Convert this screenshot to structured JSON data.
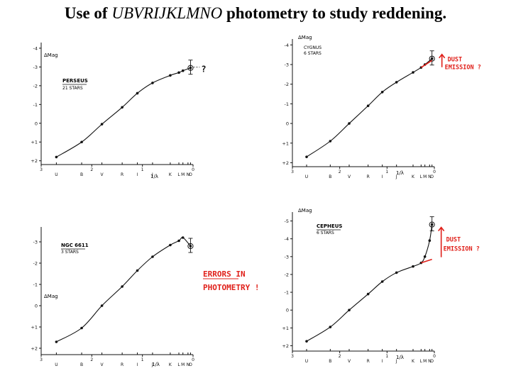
{
  "title": {
    "prefix": "Use of ",
    "emphasis": "UBVRIJKLMNO",
    "suffix": " photometry to study reddening."
  },
  "colors": {
    "curve": "#111111",
    "annotation": "#e0201a",
    "paper": "#ffffff"
  },
  "chart_data": [
    {
      "type": "line",
      "title": "PERSEUS",
      "subtitle": "21 STARS",
      "ylabel": "ΔMag",
      "xlabel": "1/λ",
      "bands": [
        "U",
        "B",
        "V",
        "R",
        "I",
        "J",
        "K",
        "L",
        "M",
        "N",
        "O"
      ],
      "band_x": [
        2.7,
        2.2,
        1.8,
        1.4,
        1.1,
        0.8,
        0.45,
        0.28,
        0.2,
        0.1,
        0.05
      ],
      "x_ticks": [
        "3",
        "2",
        "1",
        "0"
      ],
      "xlim": [
        3,
        0
      ],
      "y_ticks": [
        "-4",
        "-3",
        "-2",
        "-1",
        "0",
        "+1",
        "+2"
      ],
      "ylim": [
        2.2,
        -4.3
      ],
      "points": [
        [
          2.7,
          1.8
        ],
        [
          2.2,
          1.0
        ],
        [
          1.8,
          0.05
        ],
        [
          1.4,
          -0.85
        ],
        [
          1.1,
          -1.6
        ],
        [
          0.8,
          -2.15
        ],
        [
          0.45,
          -2.55
        ],
        [
          0.28,
          -2.7
        ],
        [
          0.2,
          -2.8
        ],
        [
          0.05,
          -2.95
        ]
      ],
      "annotation": "?"
    },
    {
      "type": "line",
      "title": "CYGNUS",
      "subtitle": "6 STARS",
      "ylabel": "ΔMag",
      "xlabel": "1/λ",
      "bands": [
        "U",
        "B",
        "V",
        "R",
        "I",
        "J",
        "K",
        "L",
        "M",
        "N",
        "O"
      ],
      "band_x": [
        2.7,
        2.2,
        1.8,
        1.4,
        1.1,
        0.8,
        0.45,
        0.28,
        0.2,
        0.1,
        0.05
      ],
      "x_ticks": [
        "3",
        "2",
        "1",
        "0"
      ],
      "xlim": [
        3,
        0
      ],
      "y_ticks": [
        "-4",
        "-3",
        "-2",
        "-1",
        "0",
        "+1",
        "+2"
      ],
      "ylim": [
        2.2,
        -4.3
      ],
      "points": [
        [
          2.7,
          1.7
        ],
        [
          2.2,
          0.9
        ],
        [
          1.8,
          0.0
        ],
        [
          1.4,
          -0.9
        ],
        [
          1.1,
          -1.6
        ],
        [
          0.8,
          -2.1
        ],
        [
          0.45,
          -2.6
        ],
        [
          0.28,
          -2.85
        ],
        [
          0.2,
          -3.0
        ],
        [
          0.05,
          -3.3
        ]
      ],
      "annotation": "DUST EMISSION ?"
    },
    {
      "type": "line",
      "title": "NGC 6611",
      "subtitle": "3 STARS",
      "ylabel": "ΔMag",
      "xlabel": "1/λ",
      "bands": [
        "U",
        "B",
        "V",
        "R",
        "I",
        "J",
        "K",
        "L",
        "M",
        "N",
        "O"
      ],
      "band_x": [
        2.7,
        2.2,
        1.8,
        1.4,
        1.1,
        0.8,
        0.45,
        0.28,
        0.2,
        0.1,
        0.05
      ],
      "x_ticks": [
        "3",
        "2",
        "1",
        "0"
      ],
      "xlim": [
        3,
        0
      ],
      "y_ticks": [
        "-3",
        "-2",
        "-1",
        "0",
        "+1",
        "+2"
      ],
      "ylim": [
        2.3,
        -3.7
      ],
      "points": [
        [
          2.7,
          1.7
        ],
        [
          2.2,
          1.05
        ],
        [
          1.8,
          0.0
        ],
        [
          1.4,
          -0.9
        ],
        [
          1.1,
          -1.65
        ],
        [
          0.8,
          -2.3
        ],
        [
          0.45,
          -2.85
        ],
        [
          0.28,
          -3.05
        ],
        [
          0.2,
          -3.2
        ],
        [
          0.05,
          -2.8
        ]
      ],
      "annotation": "ERRORS IN PHOTOMETRY !"
    },
    {
      "type": "line",
      "title": "CEPHEUS",
      "subtitle": "6 STARS",
      "ylabel": "ΔMag",
      "xlabel": "1/λ",
      "bands": [
        "U",
        "B",
        "V",
        "R",
        "I",
        "J",
        "K",
        "L",
        "M",
        "N",
        "O"
      ],
      "band_x": [
        2.7,
        2.2,
        1.8,
        1.4,
        1.1,
        0.8,
        0.45,
        0.28,
        0.2,
        0.1,
        0.05
      ],
      "x_ticks": [
        "3",
        "2",
        "1",
        "0"
      ],
      "xlim": [
        3,
        0
      ],
      "y_ticks": [
        "-5",
        "-4",
        "-3",
        "-2",
        "-1",
        "0",
        "+1",
        "+2"
      ],
      "ylim": [
        2.3,
        -5.5
      ],
      "points": [
        [
          2.7,
          1.75
        ],
        [
          2.2,
          0.95
        ],
        [
          1.8,
          0.0
        ],
        [
          1.4,
          -0.9
        ],
        [
          1.1,
          -1.6
        ],
        [
          0.8,
          -2.1
        ],
        [
          0.45,
          -2.45
        ],
        [
          0.28,
          -2.65
        ],
        [
          0.2,
          -3.0
        ],
        [
          0.1,
          -3.9
        ],
        [
          0.05,
          -4.8
        ]
      ],
      "annotation": "DUST EMISSION ?"
    }
  ]
}
